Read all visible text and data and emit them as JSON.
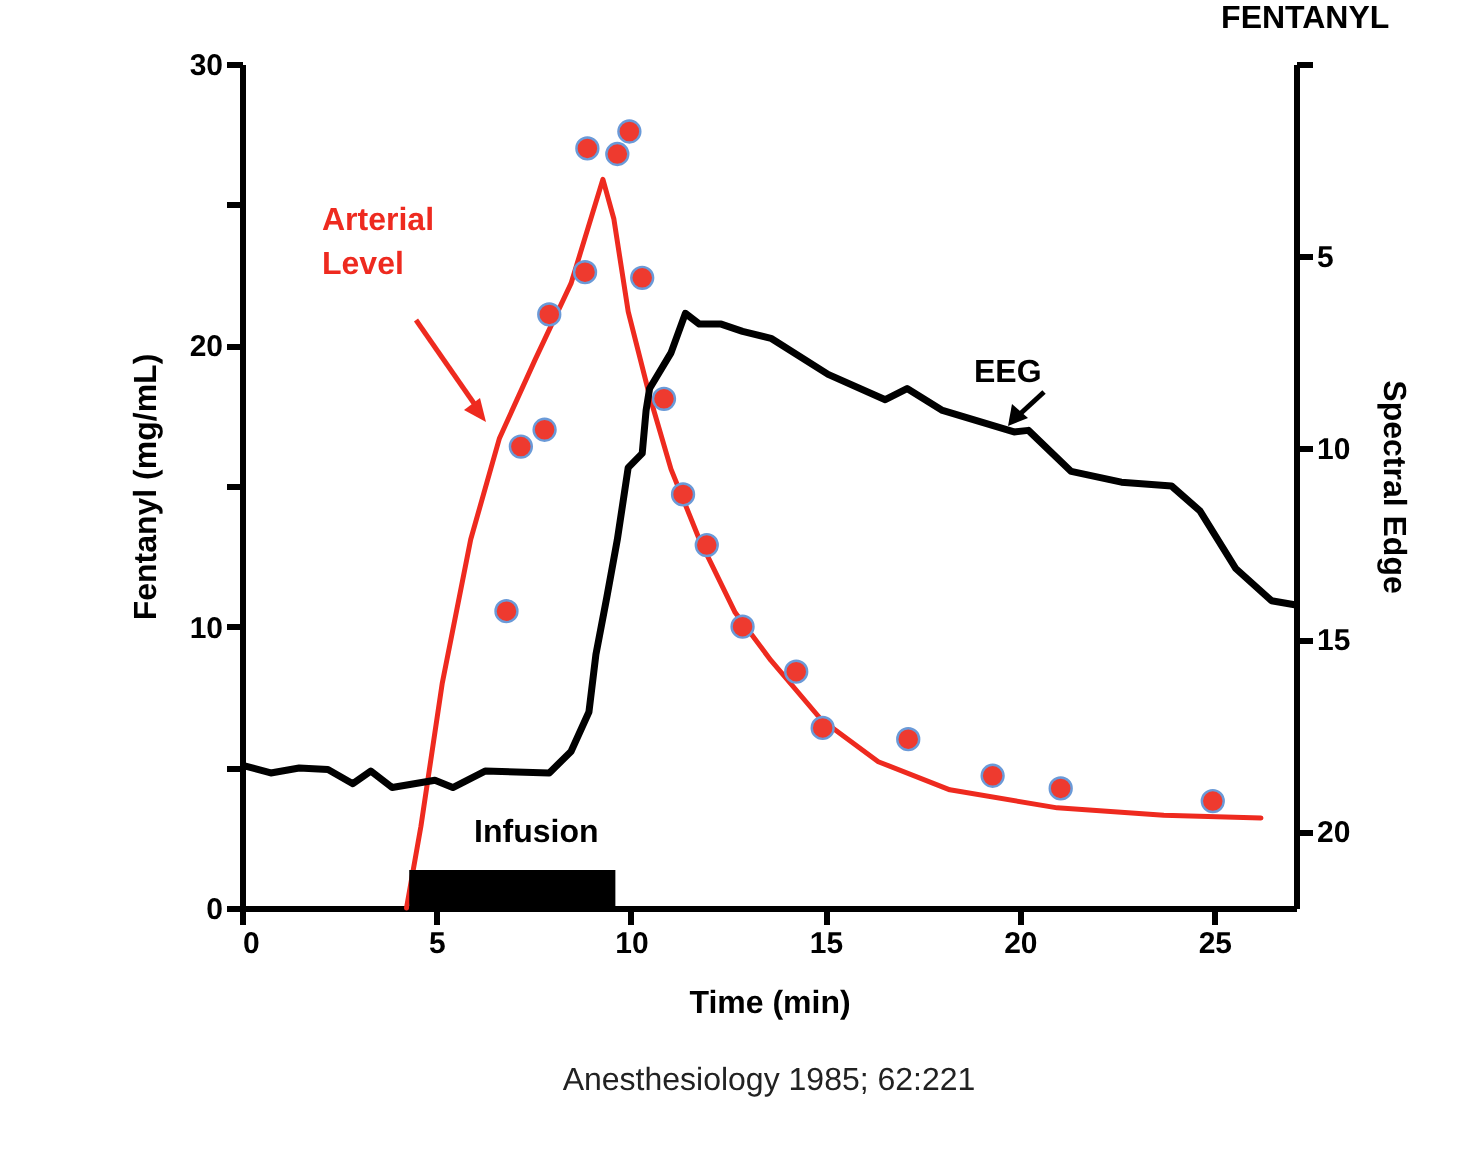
{
  "chart_data": {
    "type": "line",
    "title": "FENTANYL",
    "xlabel": "Time (min)",
    "ylabel": "Fentanyl (mg/mL)",
    "y2label": "Spectral Edge",
    "annotations": [
      "Anesthesiology 1985; 62:221"
    ],
    "xlim": [
      0,
      27.1
    ],
    "xticks": [
      0,
      5,
      10,
      15,
      20,
      25
    ],
    "ylim": [
      0,
      30
    ],
    "yticks": [
      0,
      {
        "value": 5,
        "label": null
      },
      10,
      {
        "value": 15,
        "label": null
      },
      20,
      {
        "value": 25,
        "label": null
      },
      30
    ],
    "y2lim": [
      22,
      0
    ],
    "y2ticks": [
      {
        "value": 0,
        "label": null
      },
      5,
      10,
      15,
      20
    ],
    "grid": false,
    "legend": false,
    "bands": [
      {
        "axis": "x",
        "from": 4.3,
        "to": 9.6,
        "label": "Infusion",
        "color": "#000000"
      }
    ],
    "series": [
      {
        "name": "Arterial Level",
        "type": "line",
        "color": "#ee2a1f",
        "marker": "none",
        "x": [
          4.23,
          4.6,
          5.15,
          5.88,
          6.62,
          7.54,
          8.46,
          9.28,
          9.56,
          9.93,
          10.48,
          11.03,
          11.76,
          12.68,
          13.6,
          14.89,
          16.36,
          18.2,
          20.96,
          23.7,
          26.2
        ],
        "values": [
          0,
          2.9,
          8.0,
          13.1,
          16.7,
          19.5,
          22.2,
          25.9,
          24.5,
          21.2,
          18.2,
          15.6,
          13.1,
          10.5,
          8.8,
          6.7,
          5.2,
          4.2,
          3.56,
          3.3,
          3.2
        ]
      },
      {
        "name": "EEG",
        "type": "line",
        "axis": "y2",
        "color": "#000000",
        "marker": "none",
        "x": [
          0.09,
          0.74,
          1.47,
          2.21,
          2.85,
          3.31,
          3.86,
          4.96,
          5.42,
          6.25,
          7.9,
          8.46,
          8.92,
          9.1,
          9.38,
          9.65,
          9.93,
          10.29,
          10.39,
          10.48,
          11.03,
          11.4,
          11.76,
          12.32,
          12.87,
          13.6,
          15.07,
          16.54,
          17.1,
          18.01,
          19.85,
          20.22,
          21.32,
          22.61,
          23.9,
          24.63,
          25.55,
          26.47,
          27.1
        ],
        "values": [
          18.3,
          18.48,
          18.35,
          18.39,
          18.76,
          18.43,
          18.86,
          18.67,
          18.86,
          18.43,
          18.48,
          17.92,
          16.89,
          15.39,
          13.9,
          12.4,
          10.52,
          10.15,
          9.03,
          8.46,
          7.53,
          6.5,
          6.78,
          6.78,
          6.97,
          7.15,
          8.09,
          8.75,
          8.46,
          9.03,
          9.59,
          9.55,
          10.62,
          10.9,
          11.0,
          11.65,
          13.15,
          13.99,
          14.1
        ]
      },
      {
        "type": "scatter",
        "color": "#ee3a2f",
        "marker": "circle",
        "x": [
          6.8,
          7.17,
          7.78,
          7.9,
          8.82,
          8.88,
          9.65,
          9.96,
          10.29,
          10.85,
          11.34,
          11.95,
          12.87,
          14.25,
          14.93,
          17.13,
          19.3,
          21.05,
          24.96
        ],
        "values": [
          10.55,
          16.4,
          17.0,
          21.1,
          22.6,
          27.0,
          26.8,
          27.6,
          22.4,
          18.1,
          14.7,
          12.9,
          10.0,
          8.4,
          6.4,
          6.0,
          4.7,
          4.25,
          3.8
        ]
      }
    ]
  }
}
